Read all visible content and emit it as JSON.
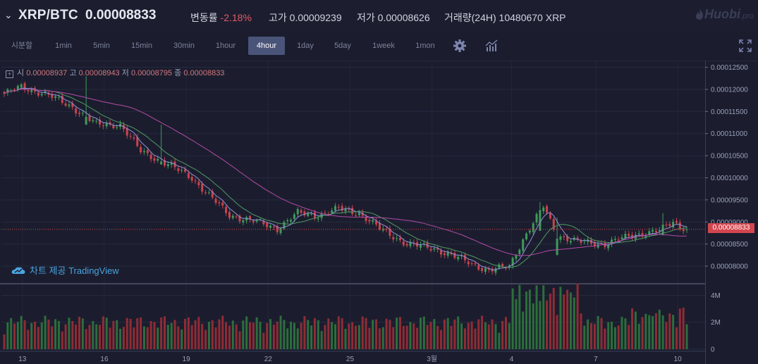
{
  "header": {
    "pair": "XRP/BTC",
    "last_price": "0.00008833",
    "change_label": "변동률",
    "change_value": "-2.18%",
    "high_label": "고가",
    "high_value": "0.00009239",
    "low_label": "저가",
    "low_value": "0.00008626",
    "volume_label": "거래량(24H)",
    "volume_value": "10480670 XRP",
    "brand_main": "Huobi",
    "brand_sub": ".pro"
  },
  "toolbar": {
    "timeframes": [
      "시분할",
      "1min",
      "5min",
      "15min",
      "30min",
      "1hour",
      "4hour",
      "1day",
      "5day",
      "1week",
      "1mon"
    ],
    "active": "4hour",
    "icons": [
      "gear-icon",
      "indicator-chart-icon",
      "fullscreen-icon"
    ]
  },
  "legend": {
    "open_label": "시",
    "open_value": "0.00008937",
    "high_label": "고",
    "high_value": "0.00008943",
    "low_label": "저",
    "low_value": "0.00008795",
    "close_label": "종",
    "close_value": "0.00008833"
  },
  "watermark": "차트 제공 TradingView",
  "colors": {
    "up": "#3f9a5a",
    "down": "#c9434e",
    "ma_fast": "#8f8fd6",
    "ma_mid": "#4f9a64",
    "ma_slow": "#b54aa8"
  },
  "chart_data": {
    "type": "candlestick",
    "price_axis": {
      "ticks": [
        "0.00012500",
        "0.00012000",
        "0.00011500",
        "0.00011000",
        "0.00010500",
        "0.00010000",
        "0.00009500",
        "0.00009000",
        "0.00008500",
        "0.00008000"
      ],
      "range": [
        7.65e-05,
        0.0001262
      ]
    },
    "volume_axis": {
      "ticks": [
        "4M",
        "2M",
        "0"
      ],
      "range": [
        0,
        4600000
      ]
    },
    "x_ticks": [
      "13",
      "16",
      "19",
      "22",
      "25",
      "3월",
      "4",
      "7",
      "10"
    ],
    "last_price_label": "0.00008833",
    "last_price": 8.833e-05,
    "close_anchors": [
      [
        0,
        0.000119
      ],
      [
        5,
        0.0001205
      ],
      [
        12,
        0.000119
      ],
      [
        20,
        0.000116
      ],
      [
        27,
        0.000112
      ],
      [
        34,
        0.000112
      ],
      [
        40,
        0.000106
      ],
      [
        48,
        0.000103
      ],
      [
        55,
        0.0001
      ],
      [
        60,
        9.6e-05
      ],
      [
        66,
        9.15e-05
      ],
      [
        74,
        9e-05
      ],
      [
        80,
        8.85e-05
      ],
      [
        86,
        9.2e-05
      ],
      [
        92,
        9.15e-05
      ],
      [
        98,
        9.3e-05
      ],
      [
        104,
        9.2e-05
      ],
      [
        110,
        8.85e-05
      ],
      [
        118,
        8.5e-05
      ],
      [
        126,
        8.4e-05
      ],
      [
        134,
        8.15e-05
      ],
      [
        142,
        7.9e-05
      ],
      [
        148,
        8e-05
      ],
      [
        152,
        8.6e-05
      ],
      [
        158,
        9.35e-05
      ],
      [
        162,
        8.7e-05
      ],
      [
        168,
        8.55e-05
      ],
      [
        176,
        8.5e-05
      ],
      [
        184,
        8.7e-05
      ],
      [
        192,
        8.8e-05
      ],
      [
        196,
        9e-05
      ],
      [
        200,
        8.83e-05
      ]
    ],
    "spikes": [
      [
        24,
        0.000123,
        0.000112
      ],
      [
        46,
        0.000112,
        0.000103
      ],
      [
        157,
        9.45e-05,
        8.8e-05
      ],
      [
        162,
        9.1e-05,
        8.25e-05
      ],
      [
        193,
        9.2e-05,
        8.7e-05
      ]
    ],
    "candle_count": 201
  }
}
